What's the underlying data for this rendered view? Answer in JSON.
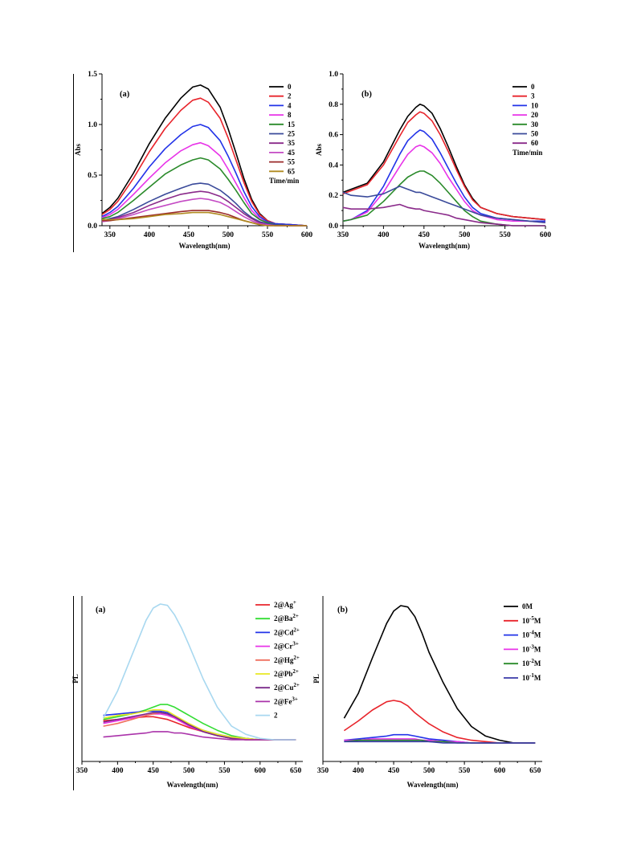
{
  "chart_data": [
    {
      "type": "line",
      "id": "top-left",
      "panel_label": "(a)",
      "xlabel": "Wavelength(nm)",
      "ylabel": "Abs",
      "xlim": [
        340,
        600
      ],
      "ylim": [
        0,
        1.5
      ],
      "xticks": [
        350,
        400,
        450,
        500,
        550,
        600
      ],
      "yticks": [
        0.0,
        0.5,
        1.0,
        1.5
      ],
      "ytick_labels": [
        "0.0",
        "0.5",
        "1.0",
        "1.5"
      ],
      "legend_title": "Time/min",
      "legend_position": "top-right",
      "x": [
        340,
        350,
        360,
        380,
        400,
        420,
        440,
        455,
        465,
        475,
        490,
        500,
        510,
        520,
        530,
        540,
        550,
        560,
        580,
        600
      ],
      "series": [
        {
          "name": "0",
          "color": "#000000",
          "values": [
            0.12,
            0.18,
            0.27,
            0.52,
            0.81,
            1.06,
            1.26,
            1.37,
            1.39,
            1.35,
            1.17,
            0.96,
            0.72,
            0.47,
            0.26,
            0.12,
            0.05,
            0.02,
            0.01,
            0.0
          ]
        },
        {
          "name": "2",
          "color": "#e8242b",
          "values": [
            0.11,
            0.16,
            0.24,
            0.47,
            0.73,
            0.96,
            1.14,
            1.24,
            1.26,
            1.22,
            1.06,
            0.87,
            0.65,
            0.43,
            0.24,
            0.11,
            0.05,
            0.02,
            0.01,
            0.0
          ]
        },
        {
          "name": "4",
          "color": "#2233e8",
          "values": [
            0.09,
            0.13,
            0.19,
            0.37,
            0.58,
            0.76,
            0.9,
            0.98,
            1.0,
            0.97,
            0.84,
            0.69,
            0.52,
            0.34,
            0.19,
            0.09,
            0.04,
            0.02,
            0.01,
            0.0
          ]
        },
        {
          "name": "8",
          "color": "#e833e8",
          "values": [
            0.08,
            0.11,
            0.16,
            0.31,
            0.47,
            0.62,
            0.74,
            0.8,
            0.82,
            0.79,
            0.69,
            0.56,
            0.42,
            0.28,
            0.15,
            0.07,
            0.03,
            0.01,
            0.0,
            0.0
          ]
        },
        {
          "name": "15",
          "color": "#2a8a2a",
          "values": [
            0.07,
            0.09,
            0.13,
            0.25,
            0.38,
            0.51,
            0.6,
            0.65,
            0.67,
            0.65,
            0.56,
            0.46,
            0.35,
            0.23,
            0.12,
            0.06,
            0.03,
            0.01,
            0.0,
            0.0
          ]
        },
        {
          "name": "25",
          "color": "#3a4a9a",
          "values": [
            0.05,
            0.07,
            0.09,
            0.16,
            0.24,
            0.31,
            0.37,
            0.41,
            0.42,
            0.41,
            0.35,
            0.29,
            0.22,
            0.14,
            0.08,
            0.04,
            0.02,
            0.01,
            0.0,
            0.0
          ]
        },
        {
          "name": "35",
          "color": "#8a2a8a",
          "values": [
            0.05,
            0.06,
            0.08,
            0.13,
            0.2,
            0.26,
            0.31,
            0.33,
            0.34,
            0.33,
            0.29,
            0.24,
            0.18,
            0.12,
            0.07,
            0.03,
            0.01,
            0.0,
            0.0,
            0.0
          ]
        },
        {
          "name": "45",
          "color": "#c44ac4",
          "values": [
            0.04,
            0.05,
            0.07,
            0.11,
            0.16,
            0.2,
            0.24,
            0.26,
            0.27,
            0.26,
            0.23,
            0.19,
            0.14,
            0.09,
            0.05,
            0.02,
            0.01,
            0.0,
            0.0,
            0.0
          ]
        },
        {
          "name": "55",
          "color": "#9a2a2a",
          "values": [
            0.05,
            0.05,
            0.06,
            0.08,
            0.1,
            0.12,
            0.14,
            0.15,
            0.15,
            0.15,
            0.13,
            0.11,
            0.08,
            0.05,
            0.03,
            0.01,
            0.0,
            0.0,
            0.0,
            0.0
          ]
        },
        {
          "name": "65",
          "color": "#b08a20",
          "values": [
            0.06,
            0.06,
            0.06,
            0.07,
            0.09,
            0.11,
            0.12,
            0.13,
            0.13,
            0.13,
            0.11,
            0.09,
            0.07,
            0.05,
            0.03,
            0.01,
            0.0,
            0.0,
            0.0,
            0.0
          ]
        }
      ]
    },
    {
      "type": "line",
      "id": "top-right",
      "panel_label": "(b)",
      "xlabel": "Wavelength(nm)",
      "ylabel": "Abs",
      "xlim": [
        350,
        600
      ],
      "ylim": [
        0,
        1.0
      ],
      "xticks": [
        350,
        400,
        450,
        500,
        550,
        600
      ],
      "yticks": [
        0.0,
        0.2,
        0.4,
        0.6,
        0.8,
        1.0
      ],
      "ytick_labels": [
        "0.0",
        "0.2",
        "0.4",
        "0.6",
        "0.8",
        "1.0"
      ],
      "legend_title": "Time/min",
      "legend_position": "top-right",
      "x": [
        350,
        360,
        380,
        400,
        420,
        430,
        440,
        445,
        450,
        460,
        470,
        480,
        490,
        500,
        510,
        520,
        540,
        560,
        580,
        600
      ],
      "series": [
        {
          "name": "0",
          "color": "#000000",
          "values": [
            0.22,
            0.24,
            0.28,
            0.42,
            0.63,
            0.72,
            0.78,
            0.8,
            0.79,
            0.74,
            0.64,
            0.52,
            0.39,
            0.27,
            0.18,
            0.12,
            0.08,
            0.06,
            0.05,
            0.04
          ]
        },
        {
          "name": "3",
          "color": "#e8242b",
          "values": [
            0.21,
            0.23,
            0.27,
            0.4,
            0.59,
            0.68,
            0.73,
            0.75,
            0.74,
            0.69,
            0.6,
            0.49,
            0.37,
            0.26,
            0.17,
            0.12,
            0.08,
            0.06,
            0.05,
            0.04
          ]
        },
        {
          "name": "10",
          "color": "#2233e8",
          "values": [
            0.03,
            0.04,
            0.1,
            0.26,
            0.47,
            0.56,
            0.61,
            0.63,
            0.62,
            0.57,
            0.48,
            0.38,
            0.28,
            0.19,
            0.12,
            0.08,
            0.05,
            0.04,
            0.03,
            0.03
          ]
        },
        {
          "name": "20",
          "color": "#e833e8",
          "values": [
            0.03,
            0.04,
            0.09,
            0.22,
            0.39,
            0.47,
            0.52,
            0.53,
            0.52,
            0.48,
            0.41,
            0.32,
            0.24,
            0.16,
            0.1,
            0.07,
            0.04,
            0.03,
            0.03,
            0.02
          ]
        },
        {
          "name": "30",
          "color": "#2a8a2a",
          "values": [
            0.03,
            0.04,
            0.07,
            0.16,
            0.27,
            0.32,
            0.35,
            0.36,
            0.36,
            0.33,
            0.28,
            0.22,
            0.16,
            0.1,
            0.06,
            0.03,
            0.01,
            0.0,
            0.0,
            0.0
          ]
        },
        {
          "name": "50",
          "color": "#3a4a9a",
          "values": [
            0.22,
            0.2,
            0.19,
            0.21,
            0.26,
            0.24,
            0.22,
            0.22,
            0.21,
            0.19,
            0.17,
            0.15,
            0.13,
            0.11,
            0.09,
            0.07,
            0.05,
            0.04,
            0.03,
            0.02
          ]
        },
        {
          "name": "60",
          "color": "#8a2a8a",
          "values": [
            0.12,
            0.11,
            0.11,
            0.12,
            0.14,
            0.12,
            0.11,
            0.11,
            0.1,
            0.09,
            0.08,
            0.07,
            0.05,
            0.04,
            0.03,
            0.02,
            0.01,
            0.0,
            0.0,
            0.0
          ]
        }
      ]
    },
    {
      "type": "line",
      "id": "bottom-left",
      "panel_label": "(a)",
      "xlabel": "Wavelength(nm)",
      "ylabel": "PL",
      "xlim": [
        350,
        660
      ],
      "ylim": [
        0,
        1.0
      ],
      "xticks": [
        350,
        400,
        450,
        500,
        550,
        600,
        650
      ],
      "yticks": [],
      "ytick_labels": [],
      "legend_title": "",
      "legend_position": "top-right",
      "x": [
        380,
        400,
        420,
        440,
        450,
        460,
        470,
        480,
        490,
        500,
        520,
        540,
        560,
        580,
        600,
        620,
        650
      ],
      "series": [
        {
          "name": "2@Ag+",
          "label_base": "2@Ag",
          "label_sup": "+",
          "color": "#e8242b",
          "values": [
            0.14,
            0.15,
            0.16,
            0.17,
            0.17,
            0.16,
            0.15,
            0.13,
            0.11,
            0.09,
            0.06,
            0.03,
            0.01,
            0.0,
            0.0,
            0.0,
            0.0
          ]
        },
        {
          "name": "2@Ba2+",
          "label_base": "2@Ba",
          "label_sup": "2+",
          "color": "#33dd33",
          "values": [
            0.15,
            0.17,
            0.19,
            0.22,
            0.24,
            0.26,
            0.26,
            0.24,
            0.21,
            0.18,
            0.12,
            0.07,
            0.03,
            0.01,
            0.0,
            0.0,
            0.0
          ]
        },
        {
          "name": "2@Cd2+",
          "label_base": "2@Cd",
          "label_sup": "2+",
          "color": "#2233e8",
          "values": [
            0.18,
            0.19,
            0.2,
            0.21,
            0.21,
            0.21,
            0.2,
            0.17,
            0.14,
            0.11,
            0.07,
            0.04,
            0.02,
            0.01,
            0.0,
            0.0,
            0.0
          ]
        },
        {
          "name": "2@Cr3+",
          "label_base": "2@Cr",
          "label_sup": "3+",
          "color": "#e833e8",
          "values": [
            0.12,
            0.14,
            0.16,
            0.18,
            0.19,
            0.19,
            0.18,
            0.16,
            0.13,
            0.1,
            0.06,
            0.03,
            0.01,
            0.0,
            0.0,
            0.0,
            0.0
          ]
        },
        {
          "name": "2@Hg2+",
          "label_base": "2@Hg",
          "label_sup": "2+",
          "color": "#f07060",
          "values": [
            0.1,
            0.12,
            0.15,
            0.18,
            0.19,
            0.2,
            0.19,
            0.17,
            0.14,
            0.11,
            0.07,
            0.03,
            0.01,
            0.0,
            0.0,
            0.0,
            0.0
          ]
        },
        {
          "name": "2@Pb2+",
          "label_base": "2@Pb",
          "label_sup": "2+",
          "color": "#e8e822",
          "values": [
            0.16,
            0.18,
            0.19,
            0.21,
            0.22,
            0.22,
            0.21,
            0.18,
            0.15,
            0.12,
            0.07,
            0.04,
            0.02,
            0.01,
            0.0,
            0.0,
            0.0
          ]
        },
        {
          "name": "2@Cu2+",
          "label_base": "2@Cu",
          "label_sup": "2+",
          "color": "#7a2a8a",
          "values": [
            0.13,
            0.15,
            0.17,
            0.19,
            0.2,
            0.2,
            0.19,
            0.17,
            0.14,
            0.11,
            0.06,
            0.03,
            0.01,
            0.0,
            0.0,
            0.0,
            0.0
          ]
        },
        {
          "name": "2@Fe3+",
          "label_base": "2@Fe",
          "label_sup": "3+",
          "color": "#aa33aa",
          "values": [
            0.02,
            0.03,
            0.04,
            0.05,
            0.06,
            0.06,
            0.06,
            0.05,
            0.05,
            0.04,
            0.02,
            0.01,
            0.0,
            0.0,
            0.0,
            0.0,
            0.0
          ]
        },
        {
          "name": "2",
          "label_base": "2",
          "label_sup": "",
          "color": "#a8d8f0",
          "values": [
            0.16,
            0.36,
            0.62,
            0.88,
            0.97,
            1.0,
            0.99,
            0.92,
            0.82,
            0.7,
            0.45,
            0.24,
            0.1,
            0.04,
            0.01,
            0.0,
            0.0
          ]
        }
      ]
    },
    {
      "type": "line",
      "id": "bottom-right",
      "panel_label": "(b)",
      "xlabel": "Wavelength(nm)",
      "ylabel": "PL",
      "xlim": [
        350,
        660
      ],
      "ylim": [
        0,
        1.0
      ],
      "xticks": [
        350,
        400,
        450,
        500,
        550,
        600,
        650
      ],
      "yticks": [],
      "ytick_labels": [],
      "legend_title": "",
      "legend_position": "top-right",
      "x": [
        380,
        400,
        420,
        440,
        450,
        460,
        470,
        480,
        490,
        500,
        520,
        540,
        560,
        580,
        600,
        620,
        650
      ],
      "series": [
        {
          "name": "0M",
          "label_base": "0M",
          "label_exp": "",
          "color": "#000000",
          "values": [
            0.18,
            0.36,
            0.62,
            0.87,
            0.96,
            1.0,
            0.99,
            0.92,
            0.8,
            0.66,
            0.44,
            0.25,
            0.12,
            0.05,
            0.02,
            0.0,
            0.0
          ]
        },
        {
          "name": "10-5M",
          "label_base": "10",
          "label_exp": "-5",
          "label_unit": "M",
          "color": "#e8242b",
          "values": [
            0.09,
            0.16,
            0.24,
            0.3,
            0.31,
            0.3,
            0.27,
            0.22,
            0.18,
            0.14,
            0.08,
            0.04,
            0.02,
            0.01,
            0.0,
            0.0,
            0.0
          ]
        },
        {
          "name": "10-4M",
          "label_base": "10",
          "label_exp": "-4",
          "label_unit": "M",
          "color": "#2233e8",
          "values": [
            0.02,
            0.03,
            0.04,
            0.05,
            0.06,
            0.06,
            0.06,
            0.05,
            0.04,
            0.03,
            0.02,
            0.01,
            0.0,
            0.0,
            0.0,
            0.0,
            0.0
          ]
        },
        {
          "name": "10-3M",
          "label_base": "10",
          "label_exp": "-3",
          "label_unit": "M",
          "color": "#e833e8",
          "values": [
            0.02,
            0.02,
            0.03,
            0.03,
            0.03,
            0.03,
            0.03,
            0.03,
            0.02,
            0.02,
            0.01,
            0.01,
            0.0,
            0.0,
            0.0,
            0.0,
            0.0
          ]
        },
        {
          "name": "10-2M",
          "label_base": "10",
          "label_exp": "-2",
          "label_unit": "M",
          "color": "#2a8a2a",
          "values": [
            0.01,
            0.02,
            0.02,
            0.02,
            0.02,
            0.02,
            0.02,
            0.02,
            0.02,
            0.01,
            0.01,
            0.0,
            0.0,
            0.0,
            0.0,
            0.0,
            0.0
          ]
        },
        {
          "name": "10-1M",
          "label_base": "10",
          "label_exp": "-1",
          "label_unit": "M",
          "color": "#3a3aa8",
          "values": [
            0.01,
            0.01,
            0.01,
            0.01,
            0.01,
            0.01,
            0.01,
            0.01,
            0.01,
            0.01,
            0.0,
            0.0,
            0.0,
            0.0,
            0.0,
            0.0,
            0.0
          ]
        }
      ]
    }
  ]
}
